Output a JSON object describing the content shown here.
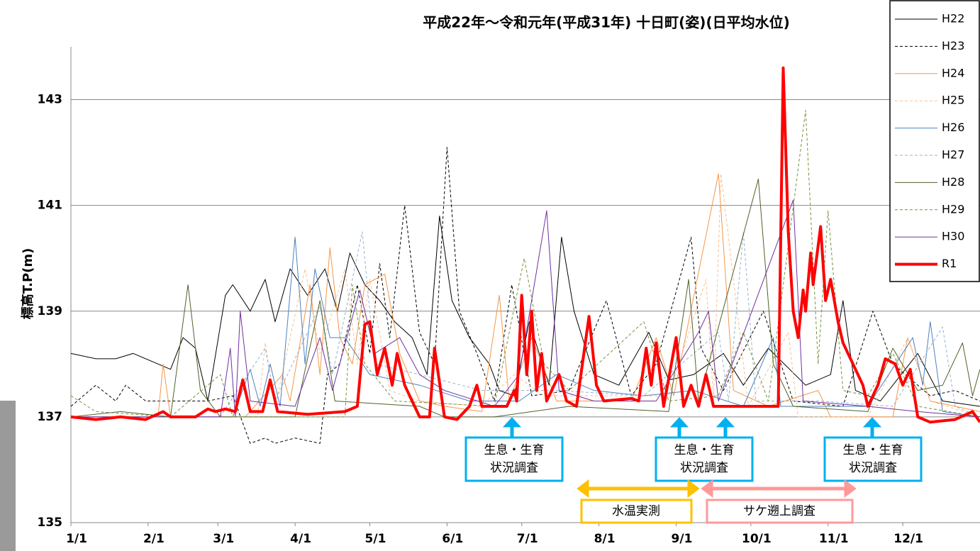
{
  "chart_data": {
    "type": "line",
    "title": "平成22年～令和元年(平成31年) 十日町(姿)(日平均水位)",
    "y_label": "標高T.P(m)",
    "xlim": [
      0,
      365
    ],
    "ylim": [
      135,
      144
    ],
    "xticks": [
      {
        "value": 0,
        "label": "1/1"
      },
      {
        "value": 31,
        "label": "2/1"
      },
      {
        "value": 59,
        "label": "3/1"
      },
      {
        "value": 90,
        "label": "4/1"
      },
      {
        "value": 120,
        "label": "5/1"
      },
      {
        "value": 151,
        "label": "6/1"
      },
      {
        "value": 181,
        "label": "7/1"
      },
      {
        "value": 212,
        "label": "8/1"
      },
      {
        "value": 243,
        "label": "9/1"
      },
      {
        "value": 273,
        "label": "10/1"
      },
      {
        "value": 304,
        "label": "11/1"
      },
      {
        "value": 334,
        "label": "12/1"
      }
    ],
    "yticks": [
      135,
      137,
      139,
      141,
      143
    ],
    "grid": true,
    "legend": "right",
    "series": [
      {
        "name": "H22",
        "color": "#000000",
        "dashed": false,
        "width": 1,
        "x": [
          0,
          10,
          18,
          25,
          35,
          40,
          45,
          50,
          55,
          62,
          65,
          72,
          78,
          82,
          88,
          95,
          102,
          107,
          112,
          118,
          124,
          130,
          137,
          143,
          148,
          153,
          160,
          168,
          172,
          178,
          184,
          192,
          197,
          202,
          210,
          220,
          232,
          240,
          250,
          262,
          270,
          280,
          295,
          305,
          310,
          315,
          325,
          340,
          350,
          365
        ],
        "values": [
          138.2,
          138.1,
          138.1,
          138.2,
          138.0,
          137.9,
          138.5,
          138.3,
          137.3,
          139.3,
          139.5,
          139.0,
          139.6,
          138.8,
          139.8,
          139.3,
          139.8,
          139.0,
          140.1,
          139.5,
          139.2,
          138.8,
          138.5,
          137.8,
          140.8,
          139.2,
          138.5,
          138.0,
          137.5,
          137.4,
          138.8,
          137.6,
          140.4,
          139.0,
          137.8,
          137.6,
          138.6,
          137.7,
          137.8,
          138.2,
          137.6,
          138.3,
          137.6,
          137.8,
          139.2,
          137.5,
          137.3,
          138.2,
          137.3,
          137.2
        ]
      },
      {
        "name": "H23",
        "color": "#000000",
        "dashed": true,
        "width": 1,
        "x": [
          0,
          10,
          18,
          22,
          30,
          55,
          65,
          72,
          78,
          82,
          90,
          100,
          103,
          108,
          115,
          120,
          124,
          128,
          134,
          140,
          146,
          151,
          156,
          163,
          170,
          177,
          185,
          200,
          215,
          225,
          235,
          249,
          253,
          262,
          278,
          290,
          310,
          322,
          330,
          345,
          355,
          365
        ],
        "values": [
          137.2,
          137.6,
          137.3,
          137.6,
          137.3,
          137.3,
          137.4,
          136.5,
          136.6,
          136.5,
          136.6,
          136.5,
          137.8,
          138.0,
          139.5,
          138.2,
          139.9,
          138.5,
          141.0,
          138.6,
          138.0,
          142.1,
          139.0,
          138.2,
          137.3,
          139.5,
          137.4,
          137.5,
          139.2,
          137.4,
          138.0,
          140.4,
          138.3,
          137.5,
          139.0,
          137.3,
          137.2,
          139.0,
          138.0,
          137.4,
          137.5,
          137.3
        ]
      },
      {
        "name": "H24",
        "color": "#f79646",
        "dashed": false,
        "width": 1,
        "x": [
          0,
          35,
          37,
          40,
          70,
          85,
          88,
          96,
          100,
          104,
          108,
          113,
          118,
          126,
          132,
          140,
          150,
          165,
          172,
          176,
          185,
          195,
          225,
          235,
          242,
          260,
          266,
          280,
          300,
          305,
          330,
          336,
          345,
          365
        ],
        "values": [
          137.0,
          137.0,
          138.0,
          137.0,
          137.0,
          137.8,
          137.3,
          139.5,
          137.8,
          140.2,
          138.5,
          138.0,
          139.5,
          139.7,
          138.2,
          137.3,
          137.2,
          137.1,
          139.3,
          137.3,
          138.5,
          137.3,
          137.3,
          138.5,
          137.4,
          141.6,
          137.5,
          137.2,
          137.5,
          137.0,
          137.0,
          138.5,
          137.3,
          137.1
        ]
      },
      {
        "name": "H25",
        "color": "#fac090",
        "dashed": true,
        "width": 1,
        "x": [
          0,
          75,
          78,
          82,
          94,
          100,
          110,
          115,
          120,
          128,
          140,
          165,
          178,
          190,
          240,
          255,
          258,
          261,
          272,
          288,
          292,
          320,
          336,
          345,
          365
        ],
        "values": [
          137.0,
          137.0,
          138.4,
          137.2,
          139.8,
          138.2,
          139.8,
          138.0,
          139.6,
          137.5,
          137.3,
          137.2,
          137.8,
          137.4,
          137.4,
          139.6,
          137.3,
          141.6,
          137.2,
          138.6,
          137.0,
          137.0,
          138.5,
          137.3,
          137.0
        ]
      },
      {
        "name": "H26",
        "color": "#4f81bd",
        "dashed": false,
        "width": 1,
        "x": [
          0,
          50,
          65,
          72,
          76,
          80,
          84,
          90,
          94,
          98,
          104,
          110,
          120,
          140,
          160,
          180,
          195,
          210,
          230,
          250,
          270,
          282,
          285,
          320,
          338,
          342,
          345,
          350,
          365
        ],
        "values": [
          137.0,
          137.0,
          137.0,
          137.9,
          137.2,
          138.0,
          137.2,
          140.4,
          138.0,
          139.8,
          138.5,
          138.5,
          137.8,
          137.6,
          137.3,
          137.3,
          137.8,
          137.5,
          137.4,
          137.5,
          137.2,
          138.5,
          137.2,
          137.2,
          138.5,
          137.6,
          138.8,
          137.1,
          137.0
        ]
      },
      {
        "name": "H27",
        "color": "#95b3d7",
        "dashed": true,
        "width": 1,
        "x": [
          0,
          60,
          78,
          82,
          100,
          105,
          117,
          122,
          140,
          165,
          195,
          230,
          260,
          264,
          270,
          275,
          300,
          330,
          350,
          355,
          365
        ],
        "values": [
          137.0,
          137.0,
          138.3,
          137.3,
          139.1,
          137.8,
          140.5,
          138.0,
          137.8,
          137.5,
          137.5,
          137.4,
          138.6,
          137.3,
          140.5,
          137.3,
          137.3,
          137.2,
          138.7,
          137.2,
          137.0
        ]
      },
      {
        "name": "H28",
        "color": "#4f6228",
        "dashed": false,
        "width": 1,
        "x": [
          0,
          20,
          40,
          47,
          52,
          60,
          90,
          100,
          106,
          140,
          150,
          170,
          200,
          240,
          248,
          252,
          276,
          282,
          290,
          320,
          330,
          340,
          350,
          358,
          362,
          365
        ],
        "values": [
          137.0,
          137.1,
          137.0,
          139.5,
          137.5,
          137.0,
          137.0,
          139.2,
          137.3,
          137.2,
          137.0,
          137.0,
          137.2,
          137.1,
          139.6,
          137.3,
          141.5,
          138.0,
          137.2,
          137.1,
          138.3,
          137.5,
          137.6,
          138.4,
          137.4,
          137.9
        ]
      },
      {
        "name": "H29",
        "color": "#76923c",
        "dashed": true,
        "width": 1,
        "x": [
          0,
          10,
          40,
          60,
          65,
          110,
          113,
          118,
          130,
          170,
          182,
          190,
          200,
          230,
          240,
          260,
          270,
          280,
          295,
          300,
          304,
          310,
          320,
          330,
          340,
          365
        ],
        "values": [
          137.4,
          137.1,
          137.0,
          137.8,
          137.0,
          137.0,
          139.5,
          138.0,
          137.3,
          137.2,
          140.0,
          138.0,
          137.5,
          138.8,
          137.3,
          137.4,
          138.6,
          137.3,
          142.8,
          138.0,
          140.9,
          137.5,
          137.4,
          138.2,
          137.2,
          137.0
        ]
      },
      {
        "name": "H30",
        "color": "#7030a0",
        "dashed": false,
        "width": 1,
        "x": [
          0,
          60,
          64,
          66,
          68,
          72,
          90,
          100,
          105,
          116,
          122,
          132,
          140,
          150,
          170,
          180,
          191,
          196,
          210,
          235,
          252,
          256,
          260,
          290,
          294,
          320,
          340,
          365
        ],
        "values": [
          137.0,
          137.0,
          138.3,
          137.0,
          139.0,
          137.3,
          137.2,
          138.5,
          137.5,
          139.4,
          138.2,
          138.5,
          137.8,
          137.5,
          137.2,
          137.8,
          140.9,
          137.5,
          137.3,
          137.3,
          138.6,
          139.0,
          137.3,
          141.1,
          137.3,
          137.2,
          137.1,
          137.0
        ]
      },
      {
        "name": "R1",
        "color": "#ff0000",
        "dashed": false,
        "width": 4,
        "x": [
          0,
          10,
          20,
          30,
          37,
          40,
          50,
          55,
          58,
          62,
          66,
          69,
          72,
          77,
          80,
          83,
          95,
          110,
          115,
          118,
          120,
          123,
          126,
          129,
          131,
          134,
          137,
          140,
          144,
          146,
          150,
          155,
          160,
          163,
          165,
          175,
          178,
          179,
          181,
          183,
          185,
          187,
          189,
          191,
          196,
          199,
          203,
          208,
          211,
          214,
          225,
          228,
          231,
          233,
          235,
          238,
          243,
          246,
          249,
          252,
          255,
          258,
          284,
          286,
          288,
          290,
          292,
          294,
          295,
          297,
          298,
          301,
          303,
          305,
          308,
          310,
          314,
          318,
          320,
          324,
          327,
          331,
          334,
          337,
          340,
          345,
          355,
          362,
          365
        ],
        "values": [
          137.0,
          136.95,
          137.0,
          136.95,
          137.1,
          137.0,
          137.0,
          137.15,
          137.1,
          137.15,
          137.1,
          137.7,
          137.1,
          137.1,
          137.7,
          137.1,
          137.05,
          137.1,
          137.2,
          138.75,
          138.8,
          137.8,
          138.3,
          137.6,
          138.2,
          137.6,
          137.3,
          137.0,
          137.0,
          138.3,
          137.0,
          136.95,
          137.2,
          137.6,
          137.2,
          137.2,
          137.5,
          137.3,
          139.3,
          137.8,
          139.0,
          137.5,
          138.2,
          137.3,
          137.8,
          137.3,
          137.2,
          138.9,
          137.6,
          137.3,
          137.35,
          137.3,
          138.3,
          137.6,
          138.4,
          137.2,
          138.5,
          137.2,
          137.6,
          137.2,
          137.8,
          137.2,
          137.2,
          143.6,
          140.5,
          139.0,
          138.5,
          139.4,
          139.0,
          140.1,
          139.5,
          140.6,
          139.2,
          139.6,
          138.8,
          138.4,
          138.0,
          137.6,
          137.2,
          137.6,
          138.1,
          138.0,
          137.6,
          137.9,
          137.0,
          136.9,
          136.95,
          137.1,
          136.9
        ]
      }
    ],
    "annotations": [
      {
        "lines": [
          "生息・生育",
          "状況調査"
        ]
      },
      {
        "lines": [
          "生息・生育",
          "状況調査"
        ]
      },
      {
        "lines": [
          "生息・生育",
          "状況調査"
        ]
      },
      {
        "lines": [
          "水温実測"
        ]
      },
      {
        "lines": [
          "サケ遡上調査"
        ]
      }
    ]
  }
}
